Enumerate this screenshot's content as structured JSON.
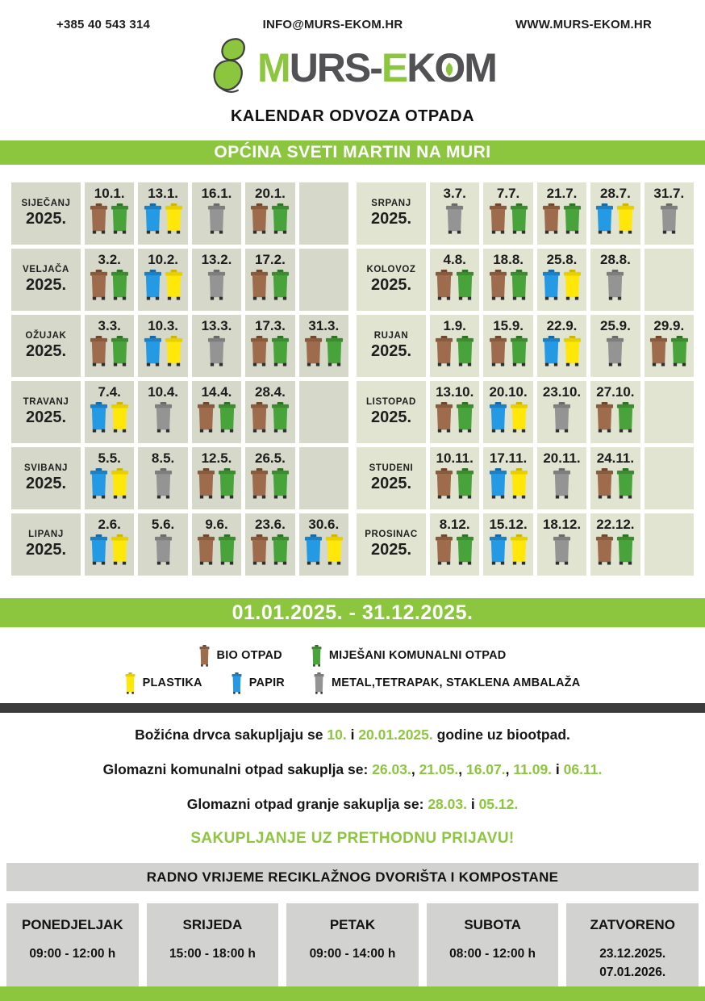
{
  "colors": {
    "brand_green": "#8cc63e",
    "dark_bar": "#3b3b3b",
    "cell_left_bg": "#d6d9c9",
    "cell_right_bg": "#e0e4d1",
    "schedule_bg": "#d2d2d0"
  },
  "header": {
    "phone": "+385 40 543 314",
    "email": "INFO@MURS-EKOM.HR",
    "website": "WWW.MURS-EKOM.HR"
  },
  "logo": {
    "parts": [
      {
        "text": "M",
        "green": true
      },
      {
        "text": "URS-",
        "green": false
      },
      {
        "text": "E",
        "green": true
      },
      {
        "text": "K",
        "green": false
      },
      {
        "text": "O",
        "green": false,
        "leaf_inside": true
      },
      {
        "text": "M",
        "green": false
      }
    ],
    "subtitle": "KALENDAR ODVOZA OTPADA"
  },
  "municipality_banner": "OPĆINA SVETI MARTIN NA MURI",
  "period_banner": "01.01.2025. - 31.12.2025.",
  "bin_types": {
    "bio": {
      "label": "BIO OTPAD",
      "body": "#9e6c4c",
      "lid": "#8a5a3d",
      "knob": "#6f472c"
    },
    "mko": {
      "label": "MIJEŠANI KOMUNALNI OTPAD",
      "body": "#48a33a",
      "lid": "#3a8c2f",
      "knob": "#2d7324"
    },
    "plastika": {
      "label": "PLASTIKA",
      "body": "#ffe70a",
      "lid": "#e8cf00",
      "knob": "#cdb600"
    },
    "papir": {
      "label": "PAPIR",
      "body": "#259ae4",
      "lid": "#1b80c4",
      "knob": "#156aa6"
    },
    "metal": {
      "label": "METAL,TETRAPAK, STAKLENA AMBALAŽA",
      "body": "#949494",
      "lid": "#7e7e7e",
      "knob": "#6a6a6a"
    }
  },
  "calendar": {
    "left": [
      {
        "month": "SIJEČANJ",
        "year": "2025.",
        "cells": [
          {
            "date": "10.1.",
            "bins": [
              "bio",
              "mko"
            ]
          },
          {
            "date": "13.1.",
            "bins": [
              "papir",
              "plastika"
            ]
          },
          {
            "date": "16.1.",
            "bins": [
              "metal"
            ]
          },
          {
            "date": "20.1.",
            "bins": [
              "bio",
              "mko"
            ]
          },
          null
        ]
      },
      {
        "month": "VELJAČA",
        "year": "2025.",
        "cells": [
          {
            "date": "3.2.",
            "bins": [
              "bio",
              "mko"
            ]
          },
          {
            "date": "10.2.",
            "bins": [
              "papir",
              "plastika"
            ]
          },
          {
            "date": "13.2.",
            "bins": [
              "metal"
            ]
          },
          {
            "date": "17.2.",
            "bins": [
              "bio",
              "mko"
            ]
          },
          null
        ]
      },
      {
        "month": "OŽUJAK",
        "year": "2025.",
        "cells": [
          {
            "date": "3.3.",
            "bins": [
              "bio",
              "mko"
            ]
          },
          {
            "date": "10.3.",
            "bins": [
              "papir",
              "plastika"
            ]
          },
          {
            "date": "13.3.",
            "bins": [
              "metal"
            ]
          },
          {
            "date": "17.3.",
            "bins": [
              "bio",
              "mko"
            ]
          },
          {
            "date": "31.3.",
            "bins": [
              "bio",
              "mko"
            ]
          }
        ]
      },
      {
        "month": "TRAVANJ",
        "year": "2025.",
        "cells": [
          {
            "date": "7.4.",
            "bins": [
              "papir",
              "plastika"
            ]
          },
          {
            "date": "10.4.",
            "bins": [
              "metal"
            ]
          },
          {
            "date": "14.4.",
            "bins": [
              "bio",
              "mko"
            ]
          },
          {
            "date": "28.4.",
            "bins": [
              "bio",
              "mko"
            ]
          },
          null
        ]
      },
      {
        "month": "SVIBANJ",
        "year": "2025.",
        "cells": [
          {
            "date": "5.5.",
            "bins": [
              "papir",
              "plastika"
            ]
          },
          {
            "date": "8.5.",
            "bins": [
              "metal"
            ]
          },
          {
            "date": "12.5.",
            "bins": [
              "bio",
              "mko"
            ]
          },
          {
            "date": "26.5.",
            "bins": [
              "bio",
              "mko"
            ]
          },
          null
        ]
      },
      {
        "month": "LIPANJ",
        "year": "2025.",
        "cells": [
          {
            "date": "2.6.",
            "bins": [
              "papir",
              "plastika"
            ]
          },
          {
            "date": "5.6.",
            "bins": [
              "metal"
            ]
          },
          {
            "date": "9.6.",
            "bins": [
              "bio",
              "mko"
            ]
          },
          {
            "date": "23.6.",
            "bins": [
              "bio",
              "mko"
            ]
          },
          {
            "date": "30.6.",
            "bins": [
              "papir",
              "plastika"
            ]
          }
        ]
      }
    ],
    "right": [
      {
        "month": "SRPANJ",
        "year": "2025.",
        "cells": [
          {
            "date": "3.7.",
            "bins": [
              "metal"
            ]
          },
          {
            "date": "7.7.",
            "bins": [
              "bio",
              "mko"
            ]
          },
          {
            "date": "21.7.",
            "bins": [
              "bio",
              "mko"
            ]
          },
          {
            "date": "28.7.",
            "bins": [
              "papir",
              "plastika"
            ]
          },
          {
            "date": "31.7.",
            "bins": [
              "metal"
            ]
          }
        ]
      },
      {
        "month": "KOLOVOZ",
        "year": "2025.",
        "cells": [
          {
            "date": "4.8.",
            "bins": [
              "bio",
              "mko"
            ]
          },
          {
            "date": "18.8.",
            "bins": [
              "bio",
              "mko"
            ]
          },
          {
            "date": "25.8.",
            "bins": [
              "papir",
              "plastika"
            ]
          },
          {
            "date": "28.8.",
            "bins": [
              "metal"
            ]
          },
          null
        ]
      },
      {
        "month": "RUJAN",
        "year": "2025.",
        "cells": [
          {
            "date": "1.9.",
            "bins": [
              "bio",
              "mko"
            ]
          },
          {
            "date": "15.9.",
            "bins": [
              "bio",
              "mko"
            ]
          },
          {
            "date": "22.9.",
            "bins": [
              "papir",
              "plastika"
            ]
          },
          {
            "date": "25.9.",
            "bins": [
              "metal"
            ]
          },
          {
            "date": "29.9.",
            "bins": [
              "bio",
              "mko"
            ]
          }
        ]
      },
      {
        "month": "LISTOPAD",
        "year": "2025.",
        "cells": [
          {
            "date": "13.10.",
            "bins": [
              "bio",
              "mko"
            ]
          },
          {
            "date": "20.10.",
            "bins": [
              "papir",
              "plastika"
            ]
          },
          {
            "date": "23.10.",
            "bins": [
              "metal"
            ]
          },
          {
            "date": "27.10.",
            "bins": [
              "bio",
              "mko"
            ]
          },
          null
        ]
      },
      {
        "month": "STUDENI",
        "year": "2025.",
        "cells": [
          {
            "date": "10.11.",
            "bins": [
              "bio",
              "mko"
            ]
          },
          {
            "date": "17.11.",
            "bins": [
              "papir",
              "plastika"
            ]
          },
          {
            "date": "20.11.",
            "bins": [
              "metal"
            ]
          },
          {
            "date": "24.11.",
            "bins": [
              "bio",
              "mko"
            ]
          },
          null
        ]
      },
      {
        "month": "PROSINAC",
        "year": "2025.",
        "cells": [
          {
            "date": "8.12.",
            "bins": [
              "bio",
              "mko"
            ]
          },
          {
            "date": "15.12.",
            "bins": [
              "papir",
              "plastika"
            ]
          },
          {
            "date": "18.12.",
            "bins": [
              "metal"
            ]
          },
          {
            "date": "22.12.",
            "bins": [
              "bio",
              "mko"
            ]
          },
          null
        ]
      }
    ]
  },
  "legend": {
    "rows": [
      [
        "bio",
        "mko"
      ],
      [
        "plastika",
        "papir",
        "metal"
      ]
    ]
  },
  "notes": [
    {
      "large": false,
      "segments": [
        {
          "text": "Božićna drvca sakupljaju se ",
          "green": false
        },
        {
          "text": "10.",
          "green": true
        },
        {
          "text": " i ",
          "green": false
        },
        {
          "text": "20.01.2025.",
          "green": true
        },
        {
          "text": " godine uz biootpad.",
          "green": false
        }
      ]
    },
    {
      "large": false,
      "segments": [
        {
          "text": "Glomazni komunalni otpad sakuplja se: ",
          "green": false
        },
        {
          "text": "26.03.",
          "green": true
        },
        {
          "text": ", ",
          "green": false
        },
        {
          "text": "21.05.",
          "green": true
        },
        {
          "text": ", ",
          "green": false
        },
        {
          "text": "16.07.",
          "green": true
        },
        {
          "text": ", ",
          "green": false
        },
        {
          "text": "11.09.",
          "green": true
        },
        {
          "text": " i ",
          "green": false
        },
        {
          "text": "06.11.",
          "green": true
        }
      ]
    },
    {
      "large": false,
      "segments": [
        {
          "text": "Glomazni otpad granje sakuplja se: ",
          "green": false
        },
        {
          "text": "28.03.",
          "green": true
        },
        {
          "text": " i ",
          "green": false
        },
        {
          "text": "05.12.",
          "green": true
        }
      ]
    },
    {
      "large": true,
      "segments": [
        {
          "text": "SAKUPLJANJE UZ PRETHODNU PRIJAVU!",
          "green": true
        }
      ]
    }
  ],
  "schedule": {
    "title": "RADNO VRIJEME RECIKLAŽNOG DVORIŠTA I KOMPOSTANE",
    "days": [
      {
        "name": "PONEDJELJAK",
        "lines": [
          "09:00 - 12:00 h"
        ]
      },
      {
        "name": "SRIJEDA",
        "lines": [
          "15:00 - 18:00 h"
        ]
      },
      {
        "name": "PETAK",
        "lines": [
          "09:00 - 14:00 h"
        ]
      },
      {
        "name": "SUBOTA",
        "lines": [
          "08:00 - 12:00 h"
        ]
      },
      {
        "name": "ZATVORENO",
        "lines": [
          "23.12.2025.",
          "07.01.2026."
        ]
      }
    ]
  }
}
